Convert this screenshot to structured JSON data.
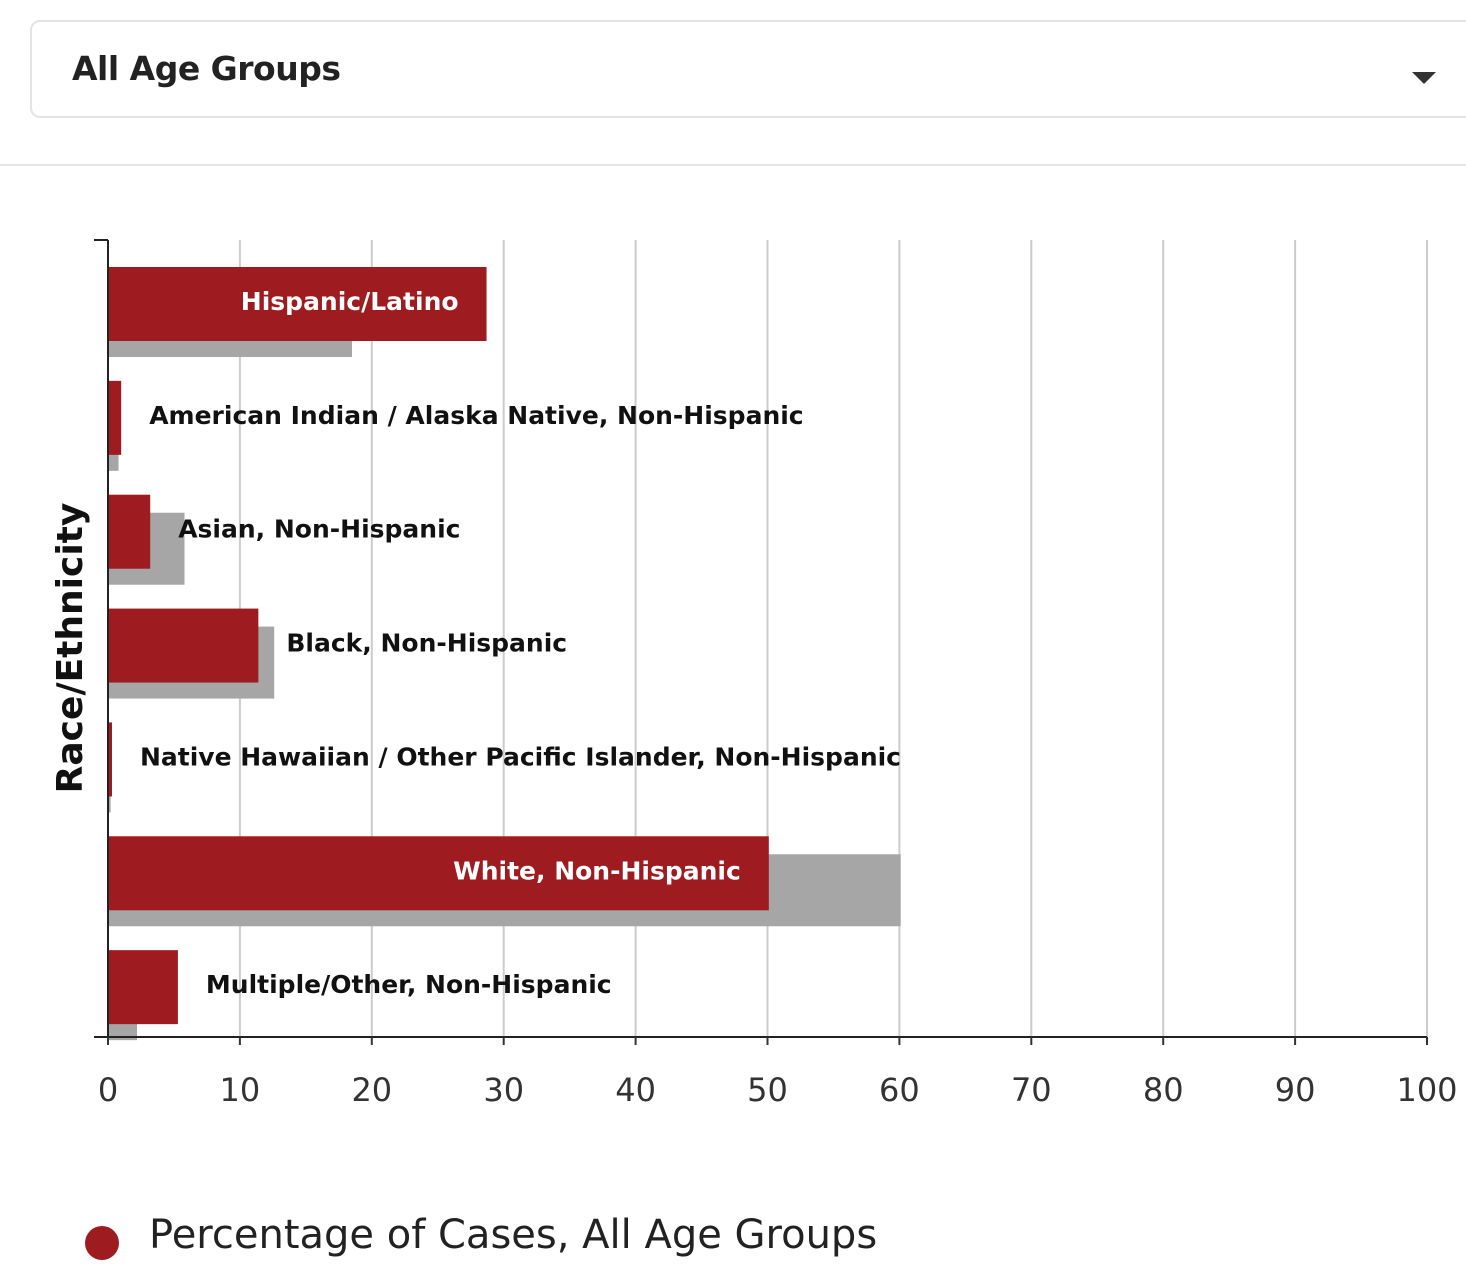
{
  "filter": {
    "selected": "All Age Groups",
    "icon": "chevron-down-icon"
  },
  "legend": {
    "items": [
      {
        "label": "Percentage of Cases, All Age Groups",
        "color": "#9e1c20"
      }
    ]
  },
  "chart_data": {
    "type": "bar",
    "orientation": "horizontal",
    "ylabel": "Race/Ethnicity",
    "xlim": [
      0,
      100
    ],
    "xticks": [
      "0",
      "10",
      "20",
      "30",
      "40",
      "50",
      "60",
      "70",
      "80",
      "90",
      "100"
    ],
    "categories": [
      "Hispanic/Latino",
      "American Indian / Alaska Native, Non-Hispanic",
      "Asian, Non-Hispanic",
      "Black, Non-Hispanic",
      "Native Hawaiian / Other Pacific Islander, Non-Hispanic",
      "White, Non-Hispanic",
      "Multiple/Other, Non-Hispanic"
    ],
    "series": [
      {
        "name": "Percentage of Cases, All Age Groups",
        "color": "#9e1c20",
        "values": [
          28.7,
          1.0,
          3.2,
          11.4,
          0.3,
          50.1,
          5.3
        ]
      },
      {
        "color": "#a6a6a6",
        "values": [
          18.5,
          0.8,
          5.8,
          12.6,
          0.2,
          60.1,
          2.2
        ]
      }
    ],
    "grid": true
  }
}
